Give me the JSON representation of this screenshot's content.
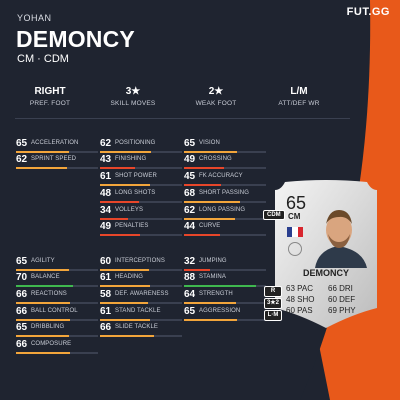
{
  "brand": {
    "logo": "FUT.GG"
  },
  "player": {
    "first_name": "YOHAN",
    "last_name": "DEMONCY",
    "positions": "CM · CDM"
  },
  "info": [
    {
      "value": "RIGHT",
      "label": "PREF. FOOT"
    },
    {
      "value": "3★",
      "label": "SKILL MOVES"
    },
    {
      "value": "2★",
      "label": "WEAK FOOT"
    },
    {
      "value": "L/M",
      "label": "ATT/DEF WR"
    }
  ],
  "stats": [
    {
      "value": "65",
      "label": "ACCELERATION",
      "fill": 0.65,
      "color": "#f2a53b"
    },
    {
      "value": "62",
      "label": "SPRINT SPEED",
      "fill": 0.62,
      "color": "#f2a53b"
    },
    {
      "value": "62",
      "label": "POSITIONING",
      "fill": 0.62,
      "color": "#f2a53b"
    },
    {
      "value": "43",
      "label": "FINISHING",
      "fill": 0.43,
      "color": "#e7462a"
    },
    {
      "value": "61",
      "label": "SHOT POWER",
      "fill": 0.61,
      "color": "#f2a53b"
    },
    {
      "value": "48",
      "label": "LONG SHOTS",
      "fill": 0.48,
      "color": "#e7462a"
    },
    {
      "value": "34",
      "label": "VOLLEYS",
      "fill": 0.34,
      "color": "#e7462a"
    },
    {
      "value": "49",
      "label": "PENALTIES",
      "fill": 0.49,
      "color": "#e7462a"
    },
    {
      "value": "65",
      "label": "VISION",
      "fill": 0.65,
      "color": "#f2a53b"
    },
    {
      "value": "49",
      "label": "CROSSING",
      "fill": 0.49,
      "color": "#e7462a"
    },
    {
      "value": "45",
      "label": "FK ACCURACY",
      "fill": 0.45,
      "color": "#e7462a"
    },
    {
      "value": "68",
      "label": "SHORT PASSING",
      "fill": 0.68,
      "color": "#f2a53b"
    },
    {
      "value": "62",
      "label": "LONG PASSING",
      "fill": 0.62,
      "color": "#f2a53b"
    },
    {
      "value": "44",
      "label": "CURVE",
      "fill": 0.44,
      "color": "#e7462a"
    },
    {
      "value": "65",
      "label": "AGILITY",
      "fill": 0.65,
      "color": "#f2a53b"
    },
    {
      "value": "70",
      "label": "BALANCE",
      "fill": 0.7,
      "color": "#3fb84f"
    },
    {
      "value": "66",
      "label": "REACTIONS",
      "fill": 0.66,
      "color": "#f2a53b"
    },
    {
      "value": "66",
      "label": "BALL CONTROL",
      "fill": 0.66,
      "color": "#f2a53b"
    },
    {
      "value": "65",
      "label": "DRIBBLING",
      "fill": 0.65,
      "color": "#f2a53b"
    },
    {
      "value": "66",
      "label": "COMPOSURE",
      "fill": 0.66,
      "color": "#f2a53b"
    },
    {
      "value": "60",
      "label": "INTERCEPTIONS",
      "fill": 0.6,
      "color": "#f2a53b"
    },
    {
      "value": "61",
      "label": "HEADING",
      "fill": 0.61,
      "color": "#f2a53b"
    },
    {
      "value": "58",
      "label": "DEF. AWARENESS",
      "fill": 0.58,
      "color": "#f2a53b"
    },
    {
      "value": "61",
      "label": "STAND TACKLE",
      "fill": 0.61,
      "color": "#f2a53b"
    },
    {
      "value": "66",
      "label": "SLIDE TACKLE",
      "fill": 0.66,
      "color": "#f2a53b"
    },
    {
      "value": "32",
      "label": "JUMPING",
      "fill": 0.32,
      "color": "#e7462a"
    },
    {
      "value": "88",
      "label": "STAMINA",
      "fill": 0.88,
      "color": "#3fb84f"
    },
    {
      "value": "64",
      "label": "STRENGTH",
      "fill": 0.64,
      "color": "#f2a53b"
    },
    {
      "value": "65",
      "label": "AGGRESSION",
      "fill": 0.65,
      "color": "#f2a53b"
    }
  ],
  "card": {
    "rating": "65",
    "position": "CM",
    "alt_position": "CDM",
    "name": "DEMONCY",
    "weak_foot_badges": [
      "R",
      "3★2",
      "L·M"
    ],
    "stats_left": [
      "63 PAC",
      "48 SHO",
      "60 PAS"
    ],
    "stats_right": [
      "66 DRI",
      "60 DEF",
      "69 PHY"
    ]
  }
}
